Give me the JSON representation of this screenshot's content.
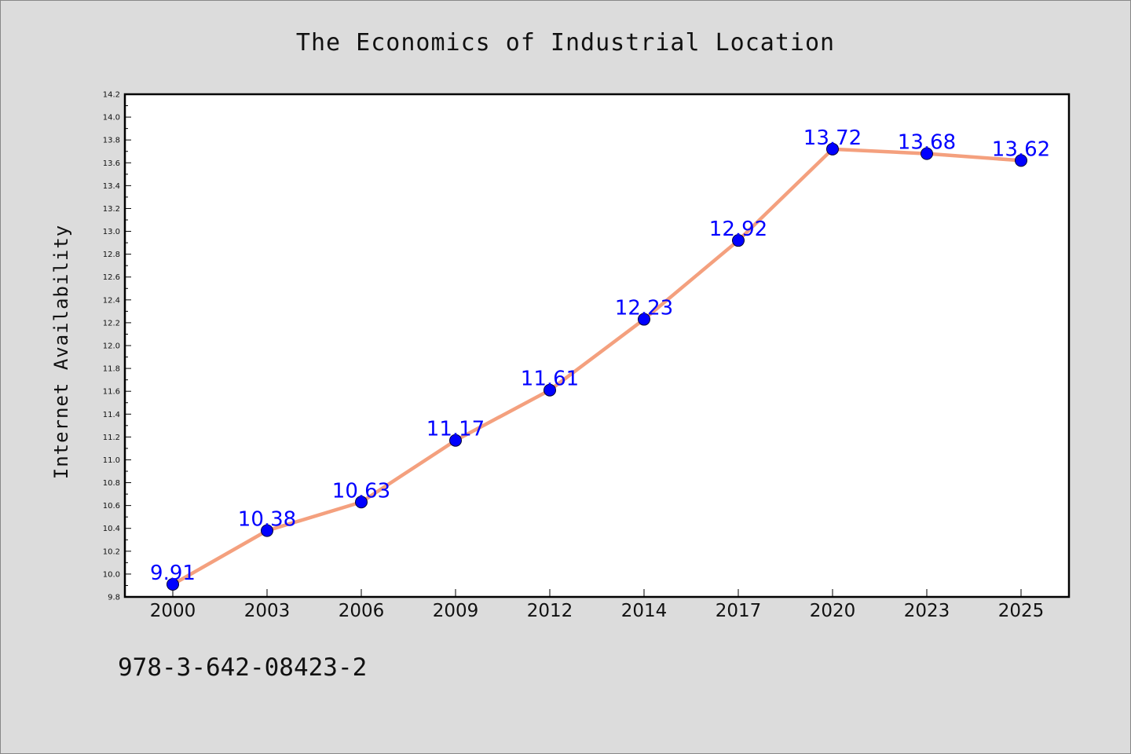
{
  "chart_data": {
    "type": "line",
    "title": "The Economics of Industrial Location",
    "xlabel": "",
    "ylabel": "Internet Availability",
    "categories": [
      "2000",
      "2003",
      "2006",
      "2009",
      "2012",
      "2014",
      "2017",
      "2020",
      "2023",
      "2025"
    ],
    "series": [
      {
        "values": [
          9.91,
          10.38,
          10.63,
          11.17,
          11.61,
          12.23,
          12.92,
          13.72,
          13.68,
          13.62
        ],
        "labels": [
          "9.91",
          "10.38",
          "10.63",
          "11.17",
          "11.61",
          "12.23",
          "12.92",
          "13.72",
          "13.68",
          "13.62"
        ],
        "line_color": "#f4a07e",
        "marker_color": "#0000ff"
      }
    ],
    "ylim": [
      9.8,
      14.2
    ],
    "yticks": [
      "9.8",
      "10.0",
      "10.2",
      "10.4",
      "10.6",
      "10.8",
      "11.0",
      "11.2",
      "11.4",
      "11.6",
      "11.8",
      "12.0",
      "12.2",
      "12.4",
      "12.6",
      "12.8",
      "13.0",
      "13.2",
      "13.4",
      "13.6",
      "13.8",
      "14.0",
      "14.2"
    ],
    "grid": false,
    "legend": "none"
  },
  "footer": {
    "isbn": "978-3-642-08423-2"
  }
}
